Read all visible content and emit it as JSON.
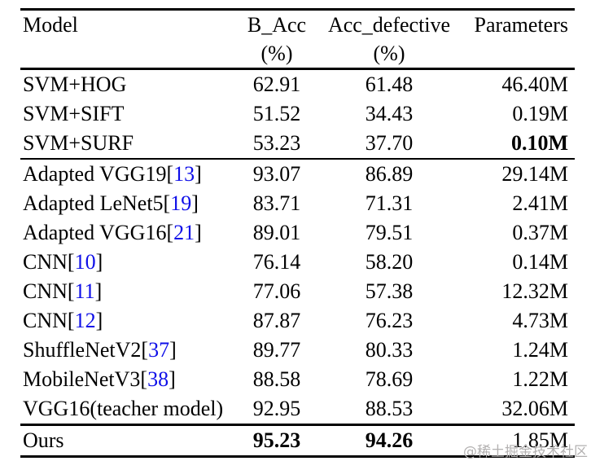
{
  "colors": {
    "citation_blue": "#0f0fe8",
    "text": "#000000",
    "rule": "#000000",
    "watermark_gray": "#b3b1b1",
    "background": "#ffffff"
  },
  "watermark": {
    "text": "@稀土掘金技术社区"
  },
  "table": {
    "header": {
      "col_model": {
        "line1": "Model",
        "line2": ""
      },
      "col_bacc": {
        "line1": "B_Acc",
        "line2": "(%)"
      },
      "col_accdef": {
        "line1": "Acc_defective",
        "line2": "(%)"
      },
      "col_params": {
        "line1": "Parameters",
        "line2": ""
      }
    },
    "groups": [
      {
        "rows": [
          {
            "model": "SVM+HOG",
            "cite": null,
            "b_acc": "62.91",
            "acc_defective": "61.48",
            "params": "46.40M"
          },
          {
            "model": "SVM+SIFT",
            "cite": null,
            "b_acc": "51.52",
            "acc_defective": "34.43",
            "params": "0.19M"
          },
          {
            "model": "SVM+SURF",
            "cite": null,
            "b_acc": "53.23",
            "acc_defective": "37.70",
            "params": "0.10M",
            "bold_params": true
          }
        ]
      },
      {
        "rows": [
          {
            "model": "Adapted VGG19",
            "cite": "13",
            "b_acc": "93.07",
            "acc_defective": "86.89",
            "params": "29.14M"
          },
          {
            "model": "Adapted LeNet5",
            "cite": "19",
            "b_acc": "83.71",
            "acc_defective": "71.31",
            "params": "2.41M"
          },
          {
            "model": "Adapted VGG16",
            "cite": "21",
            "b_acc": "89.01",
            "acc_defective": "79.51",
            "params": "0.37M"
          },
          {
            "model": "CNN",
            "cite": "10",
            "b_acc": "76.14",
            "acc_defective": "58.20",
            "params": "0.14M"
          },
          {
            "model": "CNN",
            "cite": "11",
            "b_acc": "77.06",
            "acc_defective": "57.38",
            "params": "12.32M"
          },
          {
            "model": "CNN",
            "cite": "12",
            "b_acc": "87.87",
            "acc_defective": "76.23",
            "params": "4.73M"
          },
          {
            "model": "ShuffleNetV2",
            "cite": "37",
            "b_acc": "89.77",
            "acc_defective": "80.33",
            "params": "1.24M"
          },
          {
            "model": "MobileNetV3",
            "cite": "38",
            "b_acc": "88.58",
            "acc_defective": "78.69",
            "params": "1.22M"
          },
          {
            "model": "VGG16(teacher model)",
            "cite": null,
            "b_acc": "92.95",
            "acc_defective": "88.53",
            "params": "32.06M"
          }
        ]
      },
      {
        "rows": [
          {
            "model": "Ours",
            "cite": null,
            "b_acc": "95.23",
            "acc_defective": "94.26",
            "params": "1.85M",
            "bold_b_acc": true,
            "bold_acc_defective": true
          }
        ]
      }
    ]
  }
}
